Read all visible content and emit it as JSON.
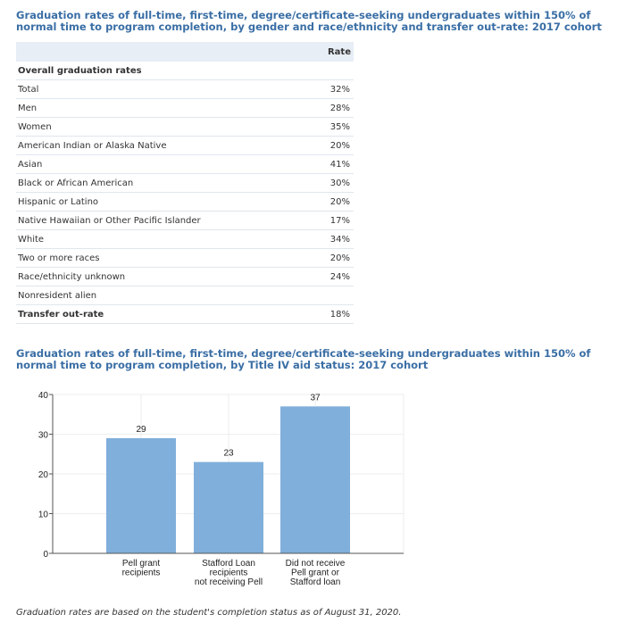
{
  "table_title": "Graduation rates of full-time, first-time, degree/certificate-seeking undergraduates within 150% of normal time to program completion, by gender and race/ethnicity and transfer out-rate: 2017 cohort",
  "table": {
    "header": [
      "",
      "Rate"
    ],
    "rows": [
      {
        "label": "Overall graduation rates",
        "value": "",
        "bold": true
      },
      {
        "label": "Total",
        "value": "32%"
      },
      {
        "label": "Men",
        "value": "28%"
      },
      {
        "label": "Women",
        "value": "35%"
      },
      {
        "label": "American Indian or Alaska Native",
        "value": "20%"
      },
      {
        "label": "Asian",
        "value": "41%"
      },
      {
        "label": "Black or African American",
        "value": "30%"
      },
      {
        "label": "Hispanic or Latino",
        "value": "20%"
      },
      {
        "label": "Native Hawaiian or Other Pacific Islander",
        "value": "17%"
      },
      {
        "label": "White",
        "value": "34%"
      },
      {
        "label": "Two or more races",
        "value": "20%"
      },
      {
        "label": "Race/ethnicity unknown",
        "value": "24%"
      },
      {
        "label": "Nonresident alien",
        "value": ""
      },
      {
        "label": "Transfer out-rate",
        "value": "18%",
        "bold": true
      }
    ]
  },
  "chart_title": "Graduation rates of full-time, first-time, degree/certificate-seeking undergraduates within 150% of normal time to program completion, by Title IV aid status: 2017 cohort",
  "chart_data": {
    "type": "bar",
    "title": "Graduation rates of full-time, first-time, degree/certificate-seeking undergraduates within 150% of normal time to program completion, by Title IV aid status: 2017 cohort",
    "categories": [
      [
        "Pell grant",
        "recipients"
      ],
      [
        "Stafford Loan",
        "recipients",
        "not receiving Pell"
      ],
      [
        "Did not receive",
        "Pell grant or",
        "Stafford loan"
      ]
    ],
    "values": [
      29,
      23,
      37
    ],
    "ylim": [
      0,
      40
    ],
    "yticks": [
      0,
      10,
      20,
      30,
      40
    ],
    "xlabel": "",
    "ylabel": "",
    "grid": true,
    "color": "#80afdb"
  },
  "note": "Graduation rates are based on the student's completion status as of August 31, 2020."
}
